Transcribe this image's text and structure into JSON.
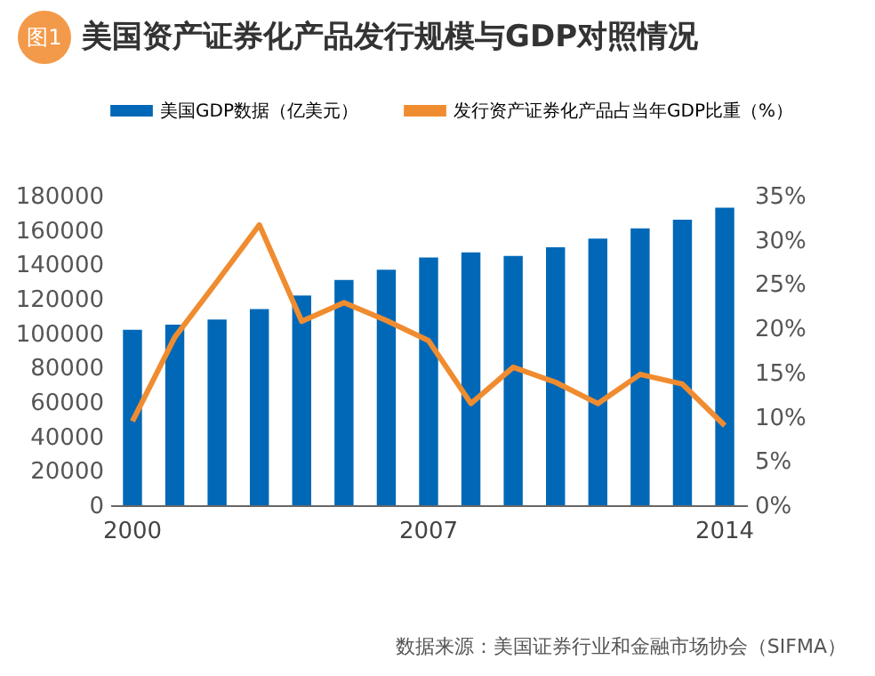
{
  "chart_data": {
    "type": "bar",
    "title": "美国资产证券化产品发行规模与GDP对照情况",
    "categories": [
      "2000",
      null,
      null,
      null,
      null,
      null,
      null,
      "2007",
      null,
      null,
      null,
      null,
      null,
      null,
      "2014"
    ],
    "series": [
      {
        "name": "美国GDP数据（亿美元）",
        "color": "#0068b7",
        "values": [
          102000,
          105000,
          108000,
          114000,
          122000,
          131000,
          137000,
          144000,
          147000,
          145000,
          150000,
          155000,
          161000,
          166000,
          173000
        ]
      },
      {
        "name": "发行资产证券化产品占当年GDP比重（%）",
        "type": "line",
        "axis": "y2",
        "color": "#f08c30",
        "values": [
          9.5,
          19.0,
          25.3,
          31.7,
          20.8,
          22.9,
          20.9,
          18.6,
          11.5,
          15.6,
          13.9,
          11.5,
          14.8,
          13.7,
          9.0
        ]
      }
    ],
    "ylim": [
      0,
      180000
    ],
    "yticks": [
      0,
      20000,
      40000,
      60000,
      80000,
      100000,
      120000,
      140000,
      160000,
      180000
    ],
    "y2lim": [
      0,
      35
    ],
    "y2ticks": [
      {
        "value": 0,
        "label": "0%"
      },
      {
        "value": 5,
        "label": "5%"
      },
      {
        "value": 10,
        "label": "10%"
      },
      {
        "value": 15,
        "label": "15%"
      },
      {
        "value": 20,
        "label": "20%"
      },
      {
        "value": 25,
        "label": "25%"
      },
      {
        "value": 30,
        "label": "30%"
      },
      {
        "value": 35,
        "label": "35%"
      }
    ],
    "legend": "top",
    "grid": false,
    "marker": "none",
    "line_style": "solid",
    "annotations": [
      "图1",
      "数据来源：美国证券行业和金融市场协会（SIFMA）"
    ]
  }
}
